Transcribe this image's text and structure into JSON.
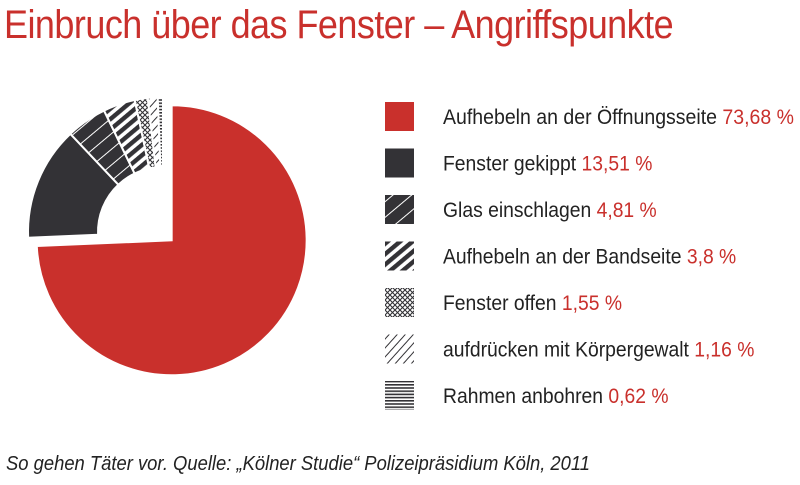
{
  "chart_data": {
    "type": "pie",
    "title": "Einbruch über das Fenster – Angriffspunkte",
    "caption": "So gehen Täter vor. Quelle: „Kölner Studie“ Polizeipräsidium Köln, 2011",
    "categories": [
      "Aufhebeln an der Öffnungsseite",
      "Fenster gekippt",
      "Glas einschlagen",
      "Aufhebeln an der Bandseite",
      "Fenster offen",
      "aufdrücken mit Körpergewalt",
      "Rahmen anbohren"
    ],
    "values": [
      73.68,
      13.51,
      4.81,
      3.8,
      1.55,
      1.16,
      0.62
    ],
    "value_labels": [
      "73,68 %",
      "13,51 %",
      "4,81 %",
      "3,8 %",
      "1,55 %",
      "1,16 %",
      "0,62 %"
    ],
    "fills": [
      "solid-red",
      "solid-dark",
      "dark-diagonal-light-lines",
      "bold-diagonal-stripes",
      "crosshatch",
      "thin-diagonal-lines",
      "horizontal-lines"
    ],
    "legend_position": "right",
    "exploded_slice": "Aufhebeln an der Öffnungsseite"
  },
  "colors": {
    "accent": "#c9302c",
    "dark": "#333236",
    "text": "#222222"
  }
}
